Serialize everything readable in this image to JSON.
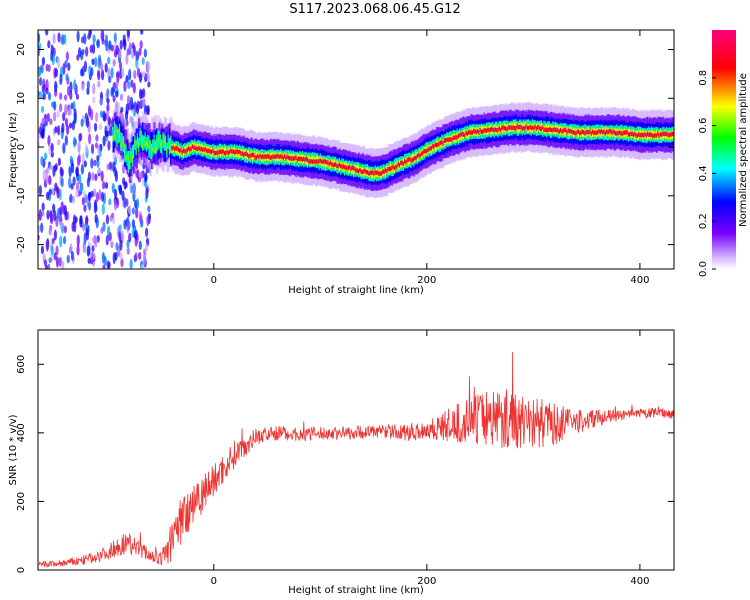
{
  "title": "S117.2023.068.06.45.G12",
  "chart_data": [
    {
      "type": "heatmap",
      "xlabel": "Height of straight line (km)",
      "ylabel": "Frequency (Hz)",
      "xlim": [
        -165,
        432
      ],
      "ylim": [
        -25,
        24
      ],
      "xticks": [
        0,
        200,
        400
      ],
      "yticks": [
        -20,
        -10,
        0,
        10,
        20
      ],
      "colorbar": {
        "label": "Normalized spectral amplitude",
        "range": [
          0,
          1
        ],
        "ticks": [
          "0.0",
          "0.2",
          "0.4",
          "0.6",
          "0.8"
        ],
        "colormap": "rainbow (white-violet-blue-cyan-green-yellow-red)"
      },
      "ridge": {
        "description": "Doppler frequency of peak spectral amplitude vs height",
        "x": [
          -150,
          -130,
          -110,
          -100,
          -90,
          -80,
          -70,
          -60,
          -50,
          -40,
          -30,
          -20,
          0,
          20,
          40,
          60,
          80,
          100,
          120,
          140,
          150,
          160,
          175,
          190,
          200,
          220,
          240,
          260,
          280,
          300,
          320,
          340,
          360,
          380,
          400,
          420,
          432
        ],
        "y": [
          -5,
          -3,
          -1,
          2,
          3,
          -3,
          2,
          0,
          1,
          0,
          -1,
          0,
          -1,
          -1,
          -2,
          -2,
          -2.5,
          -3,
          -4,
          -5,
          -5.5,
          -5,
          -3.5,
          -2,
          -0.5,
          1.5,
          3,
          3.5,
          4,
          4,
          3.5,
          3,
          3,
          3,
          2.5,
          2.5,
          2.5
        ]
      }
    },
    {
      "type": "line",
      "color": "#ee3333",
      "xlabel": "Height of straight line (km)",
      "ylabel": "SNR (10 * v/v)",
      "xlim": [
        -165,
        432
      ],
      "ylim": [
        0,
        700
      ],
      "xticks": [
        0,
        200,
        400
      ],
      "yticks": [
        0,
        200,
        400,
        600
      ],
      "series": [
        {
          "x": [
            -165,
            -140,
            -120,
            -100,
            -90,
            -80,
            -70,
            -60,
            -50,
            -40,
            -30,
            -20,
            -10,
            0,
            10,
            20,
            40,
            60,
            80,
            100,
            120,
            140,
            160,
            180,
            200,
            220,
            240,
            260,
            280,
            300,
            320,
            340,
            360,
            380,
            400,
            420,
            432
          ],
          "y": [
            15,
            20,
            30,
            50,
            70,
            80,
            60,
            45,
            30,
            80,
            150,
            200,
            230,
            260,
            300,
            340,
            390,
            400,
            395,
            398,
            400,
            402,
            405,
            400,
            410,
            420,
            435,
            450,
            440,
            430,
            425,
            430,
            445,
            450,
            455,
            460,
            455
          ],
          "spread": [
            10,
            10,
            15,
            20,
            30,
            35,
            25,
            20,
            20,
            60,
            80,
            80,
            60,
            50,
            45,
            40,
            25,
            20,
            20,
            20,
            20,
            20,
            20,
            25,
            30,
            50,
            70,
            90,
            90,
            80,
            60,
            40,
            25,
            15,
            15,
            15,
            15
          ]
        }
      ]
    }
  ]
}
